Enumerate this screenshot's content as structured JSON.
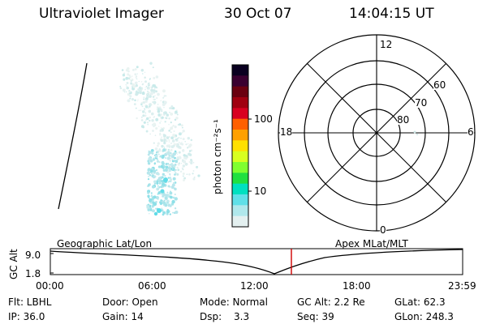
{
  "header": {
    "instrument": "Ultraviolet Imager",
    "date": "30 Oct 07",
    "time": "14:04:15 UT"
  },
  "colorbar": {
    "unit_label": "photon cm⁻²s⁻¹",
    "ticks": [
      "100",
      "10"
    ],
    "colors": [
      "#0a0020",
      "#3a0030",
      "#6a0010",
      "#a00010",
      "#d80020",
      "#ff6000",
      "#ffa000",
      "#ffe000",
      "#d8ff20",
      "#80ff30",
      "#20e040",
      "#00e0c0",
      "#60e0e8",
      "#b0e8ec",
      "#e4f0f0"
    ]
  },
  "polar_plot": {
    "mlt_labels": [
      "12",
      "6",
      "0",
      "18"
    ],
    "lat_labels": [
      "60",
      "70",
      "80"
    ]
  },
  "timeline": {
    "left_caption": "Geographic Lat/Lon",
    "right_caption": "Apex MLat/MLT",
    "axis_title": "GC Alt",
    "y_ticks": [
      "9.0",
      "1.8"
    ],
    "x_ticks": [
      "00:00",
      "06:00",
      "12:00",
      "18:00",
      "23:59"
    ],
    "marker_color": "#d00000"
  },
  "footer": {
    "flt": "Flt: LBHL",
    "ip": "IP: 36.0",
    "door": "Door: Open",
    "gain": "Gain: 14",
    "mode": "Mode: Normal",
    "dsp_label": "Dsp:",
    "dsp_value": "3.3",
    "gc_alt": "GC Alt: 2.2 Re",
    "seq": "Seq: 39",
    "glat": "GLat: 62.3",
    "glon": "GLon: 248.3"
  }
}
